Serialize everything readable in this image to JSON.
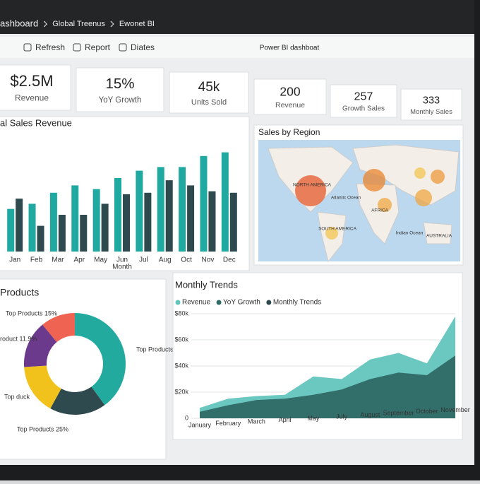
{
  "header": {
    "breadcrumb": [
      "ashboard",
      "Global Treenus",
      "Ewonet BI"
    ],
    "app_title": "Power BI dashboat",
    "toolbar": [
      "Refresh",
      "Report",
      "Diates"
    ]
  },
  "kpis": [
    {
      "value": "$2.5M",
      "label": "Revenue"
    },
    {
      "value": "15%",
      "label": "YoY Growth"
    },
    {
      "value": "45k",
      "label": "Units Sold"
    },
    {
      "value": "200",
      "label": "Revenue"
    },
    {
      "value": "257",
      "label": "Growth Sales"
    },
    {
      "value": "333",
      "label": "Monthly Sales"
    }
  ],
  "map": {
    "title": "Sales by Region",
    "labels": [
      "NORTH AMERICA",
      "Atlantic Ocean",
      "AFRICA",
      "SOUTH AMERICA",
      "Indian Ocean",
      "AUSTRALIA"
    ]
  },
  "chart_data": [
    {
      "type": "bar",
      "title": "al Sales Revenue",
      "x_label": "Month",
      "categories": [
        "Jan",
        "Feb",
        "Mar",
        "Apr",
        "May",
        "Jun",
        "Jul",
        "Aug",
        "Oct",
        "Nov",
        "Dec"
      ],
      "series": [
        {
          "color": "#1fa9a0",
          "values": [
            58,
            65,
            80,
            90,
            85,
            100,
            110,
            115,
            115,
            130,
            135
          ]
        },
        {
          "color": "#2e4a4f",
          "values": [
            72,
            35,
            50,
            50,
            65,
            78,
            80,
            97,
            90,
            82,
            80
          ]
        }
      ],
      "ylim": [
        0,
        150
      ]
    },
    {
      "type": "pie",
      "title": "Products",
      "values": [
        40,
        18,
        16,
        15,
        11
      ],
      "colors": [
        "#22aa9f",
        "#2e4a4f",
        "#f1c21b",
        "#6b3a8c",
        "#ee6352"
      ],
      "annotations": [
        "Top Products 15%",
        "roduct 11.9%",
        "Top Products",
        "Top duck",
        "Top Products 25%"
      ]
    },
    {
      "type": "area",
      "title": "Monthly Trends",
      "categories": [
        "January",
        "February",
        "March",
        "April",
        "May",
        "July",
        "August",
        "September",
        "October",
        "November"
      ],
      "series": [
        {
          "name": "Revenue",
          "color": "#63c5bd",
          "values": [
            8000,
            15000,
            17000,
            18000,
            32000,
            30000,
            45000,
            50000,
            42000,
            78000
          ]
        },
        {
          "name": "YoY Growth",
          "color": "#2f6a66",
          "values": [
            5000,
            10000,
            14000,
            15000,
            18000,
            22000,
            30000,
            35000,
            33000,
            48000
          ]
        },
        {
          "name": "Monthly Trends",
          "color": "#2e4a4f",
          "values": [
            null,
            null,
            null,
            null,
            null,
            null,
            null,
            null,
            null,
            null
          ]
        }
      ],
      "ylim": [
        0,
        80000
      ],
      "yticks": [
        0,
        {
          "value": 20000,
          "label": "$20k"
        },
        {
          "value": 40000,
          "label": "$40k"
        },
        {
          "value": 60000,
          "label": "$60k"
        },
        {
          "value": 80000,
          "label": "$80k"
        }
      ],
      "grid": true
    }
  ]
}
